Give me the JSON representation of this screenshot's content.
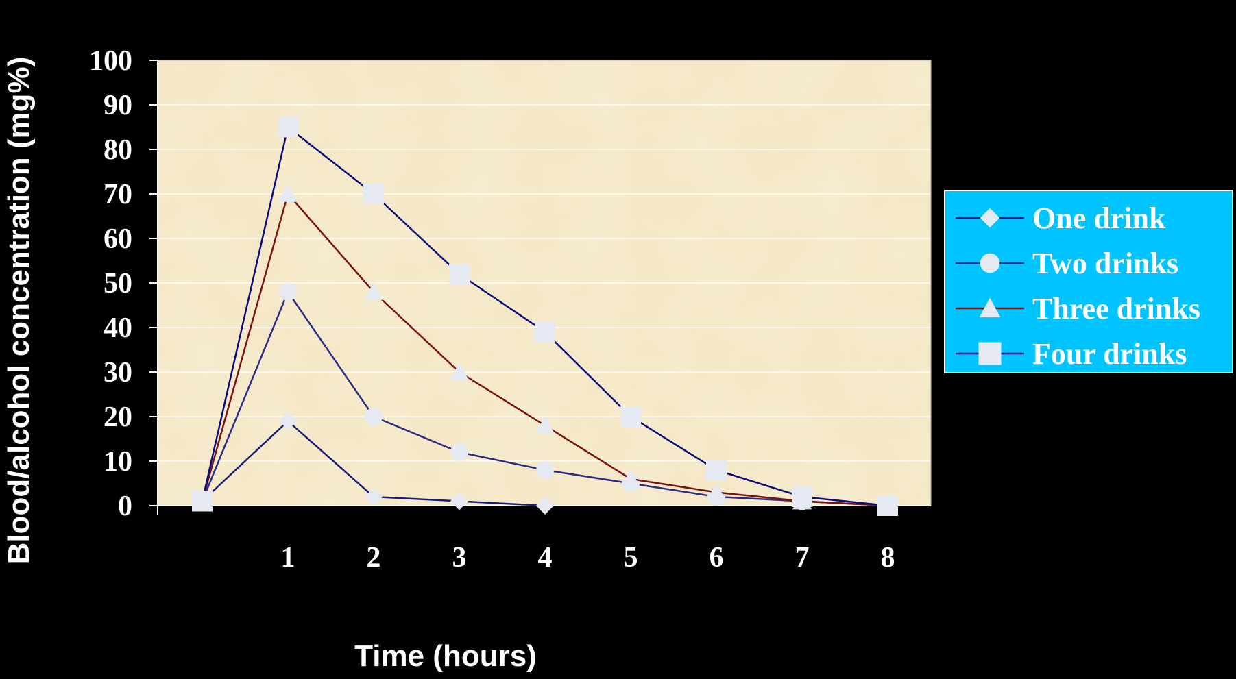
{
  "chart_data": {
    "type": "line",
    "title": "",
    "xlabel": "Time (hours)",
    "ylabel": "Blood/alcohol concentration (mg%)",
    "x": [
      0,
      1,
      2,
      3,
      4,
      5,
      6,
      7,
      8
    ],
    "x_tick_labels": [
      "",
      "1",
      "2",
      "3",
      "4",
      "5",
      "6",
      "7",
      "8"
    ],
    "ylim": [
      0,
      100
    ],
    "y_ticks": [
      0,
      10,
      20,
      30,
      40,
      50,
      60,
      70,
      80,
      90,
      100
    ],
    "grid": true,
    "legend_position": "right",
    "series": [
      {
        "name": "One drink",
        "marker": "diamond",
        "line_color": "#1a1a7a",
        "values": [
          1,
          19,
          2,
          1,
          0,
          null,
          null,
          null,
          null
        ]
      },
      {
        "name": "Two drinks",
        "marker": "circle",
        "line_color": "#2b2b80",
        "values": [
          1,
          48,
          20,
          12,
          8,
          5,
          2,
          1,
          0
        ]
      },
      {
        "name": "Three drinks",
        "marker": "triangle",
        "line_color": "#7a1010",
        "values": [
          1,
          70,
          48,
          30,
          18,
          6,
          3,
          1,
          0
        ]
      },
      {
        "name": "Four drinks",
        "marker": "square",
        "line_color": "#0b0b7a",
        "values": [
          1,
          85,
          70,
          52,
          39,
          20,
          8,
          2,
          0
        ]
      }
    ]
  },
  "colors": {
    "background": "#000000",
    "plot_area": "#f7ecd0",
    "gridline": "#ffffff",
    "axis_text": "#ffffff",
    "marker_fill": "#e4e9f2",
    "legend_background": "#00c4ff",
    "legend_text": "#ffffff"
  }
}
